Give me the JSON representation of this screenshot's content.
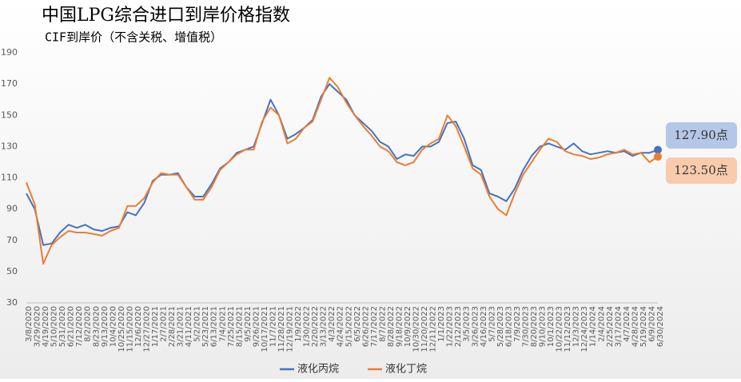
{
  "chart_data": {
    "type": "line",
    "title": "中国LPG综合进口到岸价格指数",
    "subtitle": "CIF到岸价（不含关税、增值税）",
    "categories": [
      "3/8/2020",
      "3/29/2020",
      "4/19/2020",
      "5/10/2020",
      "5/31/2020",
      "6/21/2020",
      "7/12/2020",
      "8/2/2020",
      "8/23/2020",
      "9/13/2020",
      "10/4/2020",
      "10/25/2020",
      "11/15/2020",
      "12/6/2020",
      "12/27/2020",
      "1/17/2021",
      "2/7/2021",
      "2/28/2021",
      "3/21/2021",
      "4/11/2021",
      "5/2/2021",
      "5/23/2021",
      "6/13/2021",
      "7/4/2021",
      "7/25/2021",
      "8/15/2021",
      "9/5/2021",
      "9/26/2021",
      "10/17/2021",
      "11/7/2021",
      "11/28/2021",
      "12/19/2021",
      "1/9/2022",
      "1/30/2022",
      "2/20/2022",
      "3/13/2022",
      "4/3/2022",
      "4/24/2022",
      "5/15/2022",
      "6/5/2022",
      "6/26/2022",
      "7/17/2022",
      "8/7/2022",
      "8/28/2022",
      "9/18/2022",
      "10/9/2022",
      "10/30/2022",
      "11/20/2022",
      "12/11/2022",
      "1/1/2023",
      "1/22/2023",
      "2/12/2023",
      "3/5/2023",
      "3/26/2023",
      "4/16/2023",
      "5/7/2023",
      "5/28/2023",
      "6/18/2023",
      "7/9/2023",
      "7/30/2023",
      "8/20/2023",
      "9/10/2023",
      "10/1/2023",
      "10/22/2023",
      "11/12/2023",
      "12/3/2023",
      "12/24/2023",
      "1/14/2024",
      "2/4/2024",
      "2/25/2024",
      "3/17/2024",
      "4/7/2024",
      "4/28/2024",
      "5/19/2024",
      "6/9/2024",
      "6/30/2024"
    ],
    "series": [
      {
        "name": "液化丙烷",
        "color": "#4472c4",
        "end_label": "127.90点",
        "label_fill": "#b4c7e7",
        "values": [
          100,
          90,
          67,
          68,
          75,
          80,
          78,
          80,
          77,
          76,
          78,
          79,
          88,
          86,
          94,
          108,
          112,
          112,
          113,
          104,
          98,
          98,
          106,
          116,
          120,
          126,
          128,
          130,
          145,
          160,
          150,
          135,
          138,
          142,
          147,
          162,
          170,
          165,
          160,
          150,
          145,
          140,
          133,
          130,
          122,
          125,
          124,
          130,
          130,
          133,
          145,
          146,
          135,
          118,
          115,
          100,
          98,
          95,
          103,
          115,
          124,
          130,
          132,
          130,
          128,
          132,
          127,
          125,
          126,
          127,
          126,
          127,
          124,
          126,
          126,
          127.9
        ]
      },
      {
        "name": "液化丁烷",
        "color": "#ed7d31",
        "end_label": "123.50点",
        "label_fill": "#f8cbad",
        "values": [
          107,
          93,
          55,
          67,
          72,
          76,
          75,
          75,
          74,
          73,
          76,
          78,
          92,
          92,
          97,
          107,
          113,
          112,
          112,
          104,
          96,
          96,
          104,
          115,
          120,
          125,
          128,
          128,
          146,
          155,
          150,
          132,
          135,
          142,
          146,
          160,
          174,
          168,
          158,
          150,
          143,
          137,
          130,
          127,
          120,
          118,
          120,
          128,
          132,
          135,
          150,
          143,
          130,
          116,
          112,
          98,
          90,
          86,
          100,
          112,
          120,
          128,
          135,
          133,
          127,
          125,
          124,
          122,
          123,
          125,
          126,
          128,
          125,
          126,
          120,
          123.5
        ]
      }
    ],
    "ylim": [
      30,
      190
    ],
    "yticks": [
      30,
      50,
      70,
      90,
      110,
      130,
      150,
      170,
      190
    ],
    "grid": false,
    "legend": "bottom"
  }
}
